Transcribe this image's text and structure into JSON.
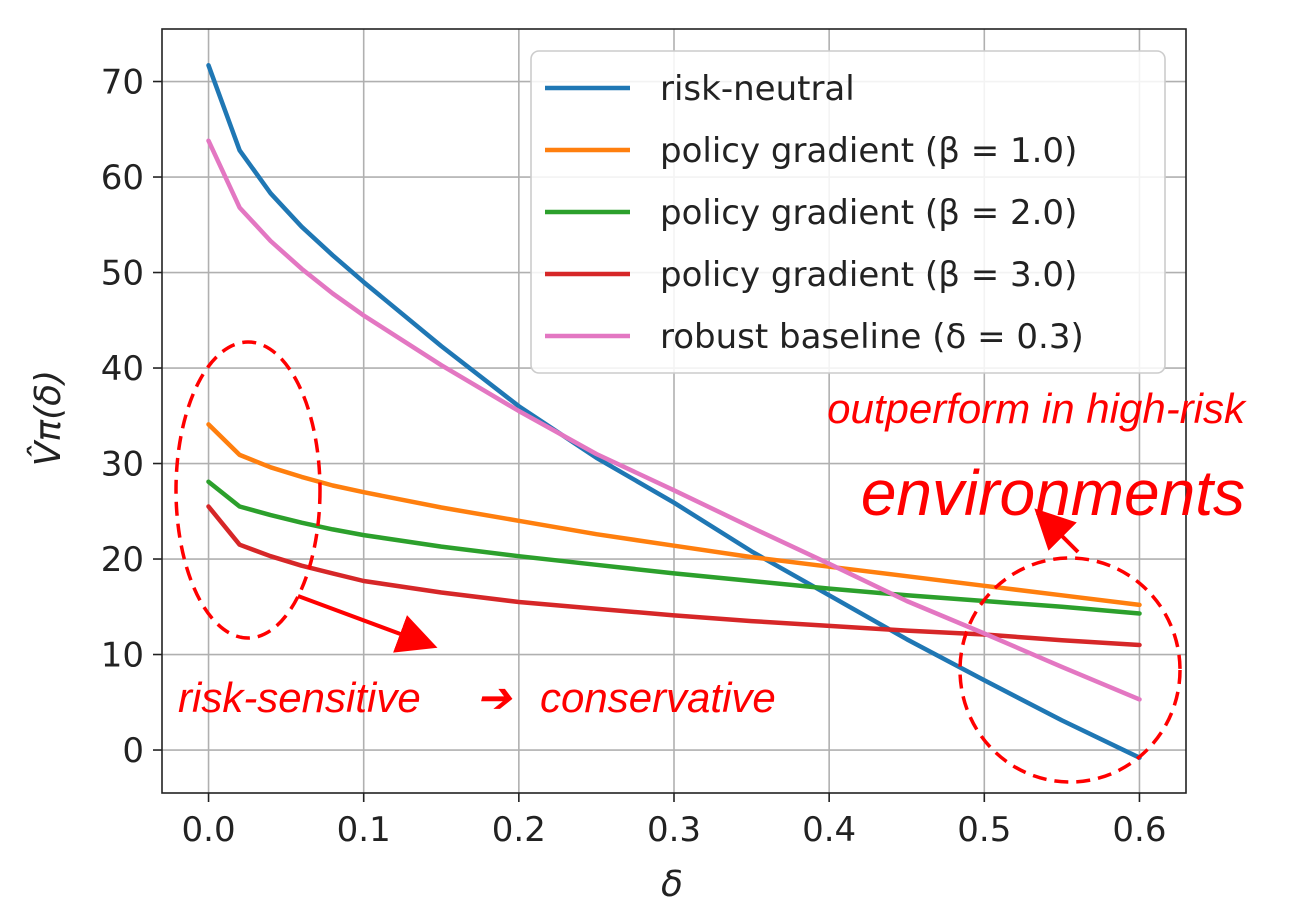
{
  "chart_data": {
    "type": "line",
    "xlabel": "δ",
    "ylabel": "V̂π(δ)",
    "xlim": [
      -0.03,
      0.63
    ],
    "ylim": [
      -4.5,
      75.5
    ],
    "x_ticks": [
      "0.0",
      "0.1",
      "0.2",
      "0.3",
      "0.4",
      "0.5",
      "0.6"
    ],
    "y_ticks": [
      "0",
      "10",
      "20",
      "30",
      "40",
      "50",
      "60",
      "70"
    ],
    "grid": true,
    "legend_position": "top-right",
    "x": [
      0.0,
      0.02,
      0.04,
      0.06,
      0.08,
      0.1,
      0.15,
      0.2,
      0.25,
      0.3,
      0.35,
      0.4,
      0.45,
      0.5,
      0.55,
      0.6
    ],
    "series": [
      {
        "name": "risk-neutral",
        "color": "#1f77b4",
        "values": [
          71.7,
          62.8,
          58.3,
          54.8,
          51.8,
          49.0,
          42.3,
          36.0,
          30.6,
          25.9,
          20.8,
          16.2,
          11.6,
          7.3,
          3.1,
          -0.8
        ]
      },
      {
        "name": "policy gradient (β = 1.0)",
        "color": "#ff7f0e",
        "values": [
          34.1,
          30.9,
          29.6,
          28.6,
          27.7,
          27.0,
          25.4,
          24.0,
          22.6,
          21.4,
          20.2,
          19.2,
          18.2,
          17.2,
          16.2,
          15.2
        ]
      },
      {
        "name": "policy gradient (β = 2.0)",
        "color": "#2ca02c",
        "values": [
          28.1,
          25.5,
          24.6,
          23.8,
          23.1,
          22.5,
          21.3,
          20.3,
          19.4,
          18.5,
          17.7,
          16.9,
          16.2,
          15.6,
          15.0,
          14.3
        ]
      },
      {
        "name": "policy gradient (β = 3.0)",
        "color": "#d62728",
        "values": [
          25.5,
          21.5,
          20.3,
          19.3,
          18.5,
          17.7,
          16.5,
          15.5,
          14.8,
          14.1,
          13.5,
          13.0,
          12.5,
          12.1,
          11.5,
          11.0
        ]
      },
      {
        "name": "robust baseline (δ = 0.3)",
        "color": "#e377c2",
        "values": [
          63.8,
          56.8,
          53.3,
          50.4,
          47.8,
          45.5,
          40.3,
          35.5,
          31.0,
          27.2,
          23.3,
          19.5,
          15.6,
          12.2,
          8.7,
          5.3
        ]
      }
    ],
    "annotations": {
      "top": "outperform in high-risk",
      "big": "environments",
      "bottom_left": "risk-sensitive",
      "arrow": "➔",
      "bottom_right": "conservative"
    },
    "annotation_color": "#ff0000"
  }
}
